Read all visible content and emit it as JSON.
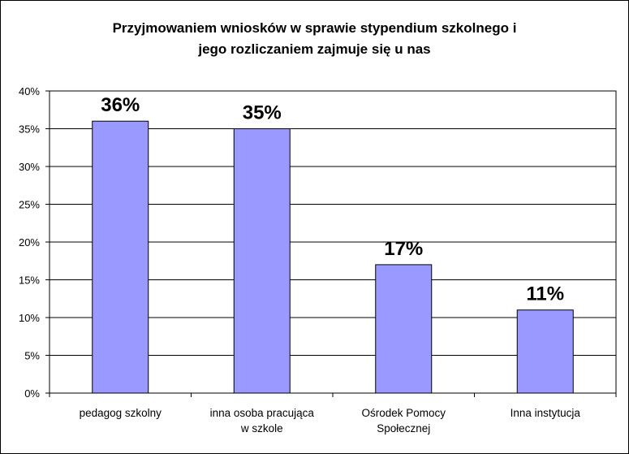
{
  "chart_data": {
    "type": "bar",
    "title": [
      "Przyjmowaniem wniosków w sprawie stypendium szkolnego i",
      "jego rozliczaniem zajmuje się u nas"
    ],
    "categories": [
      [
        "pedagog szkolny"
      ],
      [
        "inna osoba pracująca",
        "w szkole"
      ],
      [
        "Ośrodek Pomocy",
        "Społecznej"
      ],
      [
        "Inna instytucja"
      ]
    ],
    "values": [
      36,
      35,
      17,
      11
    ],
    "data_labels": [
      "36%",
      "35%",
      "17%",
      "11%"
    ],
    "ylim": [
      0,
      40
    ],
    "yticks": [
      "0%",
      "5%",
      "10%",
      "15%",
      "20%",
      "25%",
      "30%",
      "35%",
      "40%"
    ],
    "grid": true,
    "bar_color": "#9999FF",
    "plot_background": "#FFFFFF"
  }
}
